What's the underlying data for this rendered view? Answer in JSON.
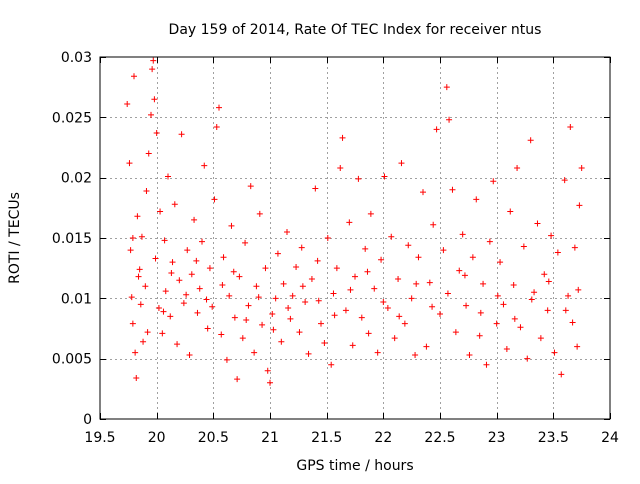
{
  "chart_data": {
    "type": "scatter",
    "title": "Day 159 of 2014, Rate Of TEC Index for receiver ntus",
    "xlabel": "GPS time / hours",
    "ylabel": "ROTI / TECUs",
    "xlim": [
      19.5,
      24
    ],
    "ylim": [
      0,
      0.03
    ],
    "xticks": [
      19.5,
      20,
      20.5,
      21,
      21.5,
      22,
      22.5,
      23,
      23.5,
      24
    ],
    "xtick_labels": [
      "19.5",
      "20",
      "20.5",
      "21",
      "21.5",
      "22",
      "22.5",
      "23",
      "23.5",
      "24"
    ],
    "yticks": [
      0,
      0.005,
      0.01,
      0.015,
      0.02,
      0.025,
      0.03
    ],
    "ytick_labels": [
      "0",
      "0.005",
      "0.01",
      "0.015",
      "0.02",
      "0.025",
      "0.03"
    ],
    "grid": true,
    "marker": "+",
    "color": "#ff0000",
    "series": [
      {
        "name": "ROTI",
        "points": [
          [
            19.74,
            0.0261
          ],
          [
            19.76,
            0.0212
          ],
          [
            19.77,
            0.014
          ],
          [
            19.78,
            0.0101
          ],
          [
            19.79,
            0.0079
          ],
          [
            19.8,
            0.0284
          ],
          [
            19.81,
            0.0055
          ],
          [
            19.82,
            0.0034
          ],
          [
            19.83,
            0.0168
          ],
          [
            19.85,
            0.0124
          ],
          [
            19.86,
            0.0095
          ],
          [
            19.87,
            0.0151
          ],
          [
            19.88,
            0.0064
          ],
          [
            19.9,
            0.011
          ],
          [
            19.91,
            0.0189
          ],
          [
            19.93,
            0.022
          ],
          [
            19.95,
            0.0252
          ],
          [
            19.96,
            0.029
          ],
          [
            19.97,
            0.0297
          ],
          [
            19.98,
            0.0265
          ],
          [
            19.99,
            0.0133
          ],
          [
            20.0,
            0.0237
          ],
          [
            20.02,
            0.0092
          ],
          [
            20.03,
            0.0172
          ],
          [
            20.05,
            0.0071
          ],
          [
            20.07,
            0.0148
          ],
          [
            20.08,
            0.0106
          ],
          [
            20.1,
            0.0201
          ],
          [
            20.12,
            0.0085
          ],
          [
            20.14,
            0.013
          ],
          [
            20.16,
            0.0178
          ],
          [
            20.18,
            0.0062
          ],
          [
            20.2,
            0.0115
          ],
          [
            20.22,
            0.0236
          ],
          [
            20.24,
            0.0096
          ],
          [
            20.27,
            0.014
          ],
          [
            20.29,
            0.0053
          ],
          [
            20.31,
            0.012
          ],
          [
            20.33,
            0.0165
          ],
          [
            20.36,
            0.0088
          ],
          [
            20.38,
            0.0108
          ],
          [
            20.4,
            0.0147
          ],
          [
            20.42,
            0.021
          ],
          [
            20.45,
            0.0075
          ],
          [
            20.47,
            0.0125
          ],
          [
            20.49,
            0.0093
          ],
          [
            20.51,
            0.0182
          ],
          [
            20.53,
            0.0242
          ],
          [
            20.55,
            0.0258
          ],
          [
            20.57,
            0.007
          ],
          [
            20.59,
            0.0134
          ],
          [
            20.62,
            0.0049
          ],
          [
            20.64,
            0.0102
          ],
          [
            20.66,
            0.016
          ],
          [
            20.69,
            0.0084
          ],
          [
            20.71,
            0.0033
          ],
          [
            20.73,
            0.0118
          ],
          [
            20.76,
            0.0067
          ],
          [
            20.78,
            0.0146
          ],
          [
            20.81,
            0.0094
          ],
          [
            20.83,
            0.0193
          ],
          [
            20.86,
            0.0055
          ],
          [
            20.88,
            0.011
          ],
          [
            20.91,
            0.017
          ],
          [
            20.93,
            0.0078
          ],
          [
            20.96,
            0.0125
          ],
          [
            20.98,
            0.004
          ],
          [
            21.0,
            0.003
          ],
          [
            21.02,
            0.0087
          ],
          [
            21.05,
            0.01
          ],
          [
            21.07,
            0.0137
          ],
          [
            21.1,
            0.0064
          ],
          [
            21.12,
            0.0112
          ],
          [
            21.15,
            0.0155
          ],
          [
            21.18,
            0.0083
          ],
          [
            21.2,
            0.0102
          ],
          [
            21.23,
            0.0126
          ],
          [
            21.26,
            0.0072
          ],
          [
            21.28,
            0.0142
          ],
          [
            21.31,
            0.0097
          ],
          [
            21.34,
            0.0054
          ],
          [
            21.37,
            0.0116
          ],
          [
            21.4,
            0.0191
          ],
          [
            21.42,
            0.0131
          ],
          [
            21.45,
            0.0079
          ],
          [
            21.48,
            0.0063
          ],
          [
            21.51,
            0.015
          ],
          [
            21.54,
            0.0045
          ],
          [
            21.56,
            0.0104
          ],
          [
            21.59,
            0.0125
          ],
          [
            21.62,
            0.0208
          ],
          [
            21.64,
            0.0233
          ],
          [
            21.67,
            0.009
          ],
          [
            21.7,
            0.0163
          ],
          [
            21.73,
            0.0061
          ],
          [
            21.75,
            0.0118
          ],
          [
            21.78,
            0.0199
          ],
          [
            21.81,
            0.0084
          ],
          [
            21.84,
            0.0141
          ],
          [
            21.87,
            0.0071
          ],
          [
            21.89,
            0.017
          ],
          [
            21.92,
            0.0108
          ],
          [
            21.95,
            0.0055
          ],
          [
            21.98,
            0.0132
          ],
          [
            22.01,
            0.0201
          ],
          [
            22.04,
            0.0092
          ],
          [
            22.07,
            0.0151
          ],
          [
            22.1,
            0.0067
          ],
          [
            22.13,
            0.0116
          ],
          [
            22.16,
            0.0212
          ],
          [
            22.19,
            0.0079
          ],
          [
            22.22,
            0.0144
          ],
          [
            22.25,
            0.01
          ],
          [
            22.28,
            0.0053
          ],
          [
            22.31,
            0.0134
          ],
          [
            22.35,
            0.0188
          ],
          [
            22.38,
            0.006
          ],
          [
            22.41,
            0.0113
          ],
          [
            22.44,
            0.0161
          ],
          [
            22.47,
            0.024
          ],
          [
            22.5,
            0.0087
          ],
          [
            22.53,
            0.014
          ],
          [
            22.56,
            0.0275
          ],
          [
            22.58,
            0.0248
          ],
          [
            22.61,
            0.019
          ],
          [
            22.64,
            0.0072
          ],
          [
            22.67,
            0.0123
          ],
          [
            22.7,
            0.0153
          ],
          [
            22.73,
            0.0094
          ],
          [
            22.76,
            0.0053
          ],
          [
            22.79,
            0.0134
          ],
          [
            22.82,
            0.0182
          ],
          [
            22.85,
            0.0069
          ],
          [
            22.88,
            0.0112
          ],
          [
            22.91,
            0.0045
          ],
          [
            22.94,
            0.0147
          ],
          [
            22.97,
            0.0197
          ],
          [
            23.0,
            0.0079
          ],
          [
            23.03,
            0.013
          ],
          [
            23.06,
            0.0095
          ],
          [
            23.09,
            0.0058
          ],
          [
            23.12,
            0.0172
          ],
          [
            23.15,
            0.0111
          ],
          [
            23.18,
            0.0208
          ],
          [
            23.21,
            0.0076
          ],
          [
            23.24,
            0.0143
          ],
          [
            23.27,
            0.005
          ],
          [
            23.3,
            0.0231
          ],
          [
            23.33,
            0.0105
          ],
          [
            23.36,
            0.0162
          ],
          [
            23.39,
            0.0067
          ],
          [
            23.42,
            0.012
          ],
          [
            23.45,
            0.009
          ],
          [
            23.48,
            0.0152
          ],
          [
            23.51,
            0.0055
          ],
          [
            23.54,
            0.0138
          ],
          [
            23.57,
            0.0037
          ],
          [
            23.6,
            0.0198
          ],
          [
            23.63,
            0.0102
          ],
          [
            23.65,
            0.0242
          ],
          [
            23.67,
            0.008
          ],
          [
            23.69,
            0.0142
          ],
          [
            23.71,
            0.006
          ],
          [
            23.73,
            0.0177
          ],
          [
            23.75,
            0.0208
          ],
          [
            19.79,
            0.015
          ],
          [
            19.84,
            0.0118
          ],
          [
            19.92,
            0.0072
          ],
          [
            20.06,
            0.0089
          ],
          [
            20.13,
            0.0121
          ],
          [
            20.26,
            0.0103
          ],
          [
            20.35,
            0.0131
          ],
          [
            20.44,
            0.0099
          ],
          [
            20.58,
            0.0111
          ],
          [
            20.68,
            0.0122
          ],
          [
            20.79,
            0.0082
          ],
          [
            20.9,
            0.0101
          ],
          [
            21.03,
            0.0074
          ],
          [
            21.16,
            0.0092
          ],
          [
            21.29,
            0.011
          ],
          [
            21.43,
            0.0098
          ],
          [
            21.57,
            0.0086
          ],
          [
            21.71,
            0.0107
          ],
          [
            21.86,
            0.0122
          ],
          [
            22.0,
            0.0097
          ],
          [
            22.14,
            0.0085
          ],
          [
            22.29,
            0.0112
          ],
          [
            22.43,
            0.0093
          ],
          [
            22.57,
            0.0104
          ],
          [
            22.72,
            0.0119
          ],
          [
            22.86,
            0.0088
          ],
          [
            23.01,
            0.0102
          ],
          [
            23.16,
            0.0083
          ],
          [
            23.31,
            0.0099
          ],
          [
            23.46,
            0.0114
          ],
          [
            23.61,
            0.009
          ],
          [
            23.72,
            0.0107
          ]
        ]
      }
    ]
  }
}
